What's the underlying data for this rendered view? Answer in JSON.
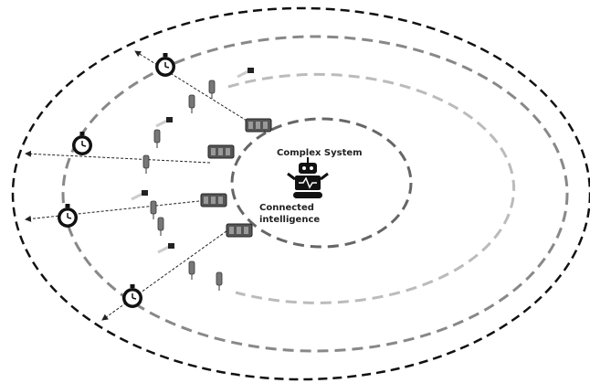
{
  "nodes": [
    {
      "label": "Complex System"
    },
    {
      "label_lines": [
        "Connected",
        "intelligence"
      ]
    }
  ]
}
